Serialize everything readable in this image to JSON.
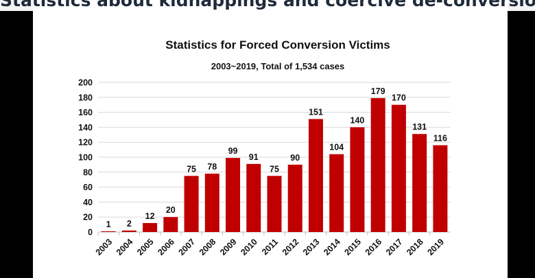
{
  "slide_title": "Statistics about kidnappings and coercive de-conversion",
  "colors": {
    "bar": "#c00000",
    "grid": "#d9d9d9"
  },
  "chart_data": {
    "type": "bar",
    "title": "Statistics for Forced Conversion Victims",
    "subtitle": "2003~2019, Total of 1,534 cases",
    "xlabel": "",
    "ylabel": "",
    "ylim": [
      0,
      200
    ],
    "yticks": [
      0,
      20,
      40,
      60,
      80,
      100,
      120,
      140,
      160,
      180,
      200
    ],
    "grid": true,
    "categories": [
      "2003",
      "2004",
      "2005",
      "2006",
      "2007",
      "2008",
      "2009",
      "2010",
      "2011",
      "2012",
      "2013",
      "2014",
      "2015",
      "2016",
      "2017",
      "2018",
      "2019"
    ],
    "values": [
      1,
      2,
      12,
      20,
      75,
      78,
      99,
      91,
      75,
      90,
      151,
      104,
      140,
      179,
      170,
      131,
      116
    ]
  }
}
